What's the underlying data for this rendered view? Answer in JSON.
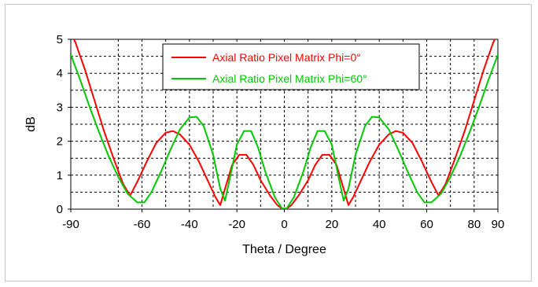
{
  "chart_data": {
    "type": "line",
    "title": "",
    "xlabel": "Theta / Degree",
    "ylabel": "dB",
    "xlim": [
      -90,
      90
    ],
    "ylim": [
      0,
      5
    ],
    "x_ticks": [
      -90,
      -60,
      -40,
      -20,
      0,
      20,
      40,
      60,
      80,
      90
    ],
    "y_ticks": [
      0,
      1,
      2,
      3,
      4,
      5
    ],
    "x_minor_grid": [
      -70,
      -60,
      -50,
      -40,
      -30,
      -20,
      -10,
      0,
      10,
      20,
      30,
      40,
      50,
      60,
      70,
      80
    ],
    "y_minor_grid": [
      0.5,
      1,
      1.5,
      2,
      2.5,
      3,
      3.5,
      4,
      4.5
    ],
    "grid": true,
    "legend_position": "top-right",
    "series": [
      {
        "name": "Axial Ratio Pixel Matrix Phi=0°",
        "color": "#ff0000",
        "x": [
          -90,
          -88,
          -84,
          -80,
          -76,
          -72,
          -68,
          -65,
          -62,
          -58,
          -54,
          -50,
          -47,
          -44,
          -40,
          -36,
          -32,
          -29,
          -27,
          -25,
          -22,
          -19,
          -16,
          -13,
          -10,
          -6,
          -3,
          -1,
          0,
          1,
          3,
          6,
          10,
          13,
          16,
          19,
          22,
          25,
          27,
          29,
          32,
          36,
          40,
          44,
          47,
          50,
          54,
          58,
          62,
          65,
          68,
          72,
          76,
          80,
          84,
          88,
          90
        ],
        "y": [
          5.2,
          4.9,
          4.1,
          3.2,
          2.3,
          1.5,
          0.75,
          0.4,
          0.8,
          1.4,
          1.95,
          2.25,
          2.3,
          2.2,
          1.9,
          1.4,
          0.8,
          0.35,
          0.12,
          0.6,
          1.3,
          1.6,
          1.6,
          1.3,
          0.85,
          0.4,
          0.12,
          0.02,
          0.02,
          0.02,
          0.12,
          0.4,
          0.85,
          1.3,
          1.6,
          1.6,
          1.3,
          0.6,
          0.12,
          0.35,
          0.8,
          1.4,
          1.9,
          2.2,
          2.3,
          2.25,
          1.95,
          1.4,
          0.8,
          0.4,
          0.75,
          1.5,
          2.3,
          3.2,
          4.1,
          4.9,
          5.2
        ]
      },
      {
        "name": "Axial Ratio Pixel Matrix Phi=60°",
        "color": "#00c800",
        "x": [
          -90,
          -86,
          -82,
          -78,
          -74,
          -70,
          -66,
          -62,
          -59,
          -56,
          -52,
          -48,
          -44,
          -40,
          -37,
          -34,
          -30,
          -27,
          -25,
          -23,
          -20,
          -17,
          -14,
          -11,
          -8,
          -4,
          -1,
          0,
          1,
          4,
          8,
          11,
          14,
          17,
          20,
          23,
          25,
          27,
          30,
          34,
          37,
          40,
          44,
          48,
          52,
          56,
          59,
          62,
          66,
          70,
          74,
          78,
          82,
          86,
          90
        ],
        "y": [
          4.55,
          3.8,
          3.0,
          2.25,
          1.55,
          0.95,
          0.45,
          0.2,
          0.2,
          0.5,
          1.1,
          1.75,
          2.35,
          2.7,
          2.72,
          2.45,
          1.6,
          0.6,
          0.25,
          0.9,
          1.9,
          2.3,
          2.3,
          1.8,
          1.1,
          0.35,
          0.02,
          0.02,
          0.02,
          0.35,
          1.1,
          1.8,
          2.3,
          2.3,
          1.9,
          0.9,
          0.25,
          0.6,
          1.6,
          2.45,
          2.72,
          2.7,
          2.35,
          1.75,
          1.1,
          0.5,
          0.2,
          0.2,
          0.45,
          0.95,
          1.55,
          2.25,
          3.0,
          3.8,
          4.55
        ]
      }
    ]
  }
}
